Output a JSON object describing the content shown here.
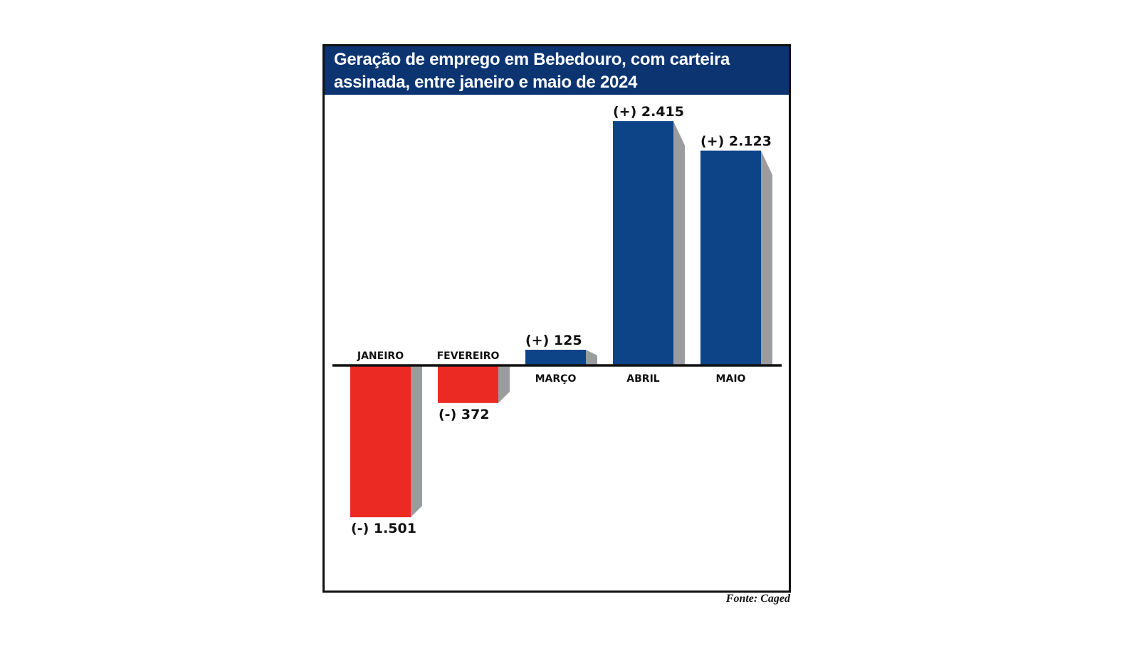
{
  "chart_data": {
    "type": "bar",
    "title": "Geração de emprego em Bebedouro, com carteira assinada, entre janeiro e maio de 2024",
    "categories": [
      "JANEIRO",
      "FEVEREIRO",
      "MARÇO",
      "ABRIL",
      "MAIO"
    ],
    "values": [
      -1501,
      -372,
      125,
      2415,
      2123
    ],
    "data_labels": [
      "(-) 1.501",
      "(-) 372",
      "(+) 125",
      "(+) 2.415",
      "(+) 2.123"
    ],
    "xlabel": "",
    "ylabel": "",
    "ylim": [
      -1700,
      2500
    ],
    "grid": false,
    "colors": {
      "positive": "#0d4488",
      "negative": "#ec2a24",
      "shadow": "#9b9ca0",
      "axis": "#111111",
      "header": "#0b3471"
    }
  },
  "source": "Fonte: Caged"
}
